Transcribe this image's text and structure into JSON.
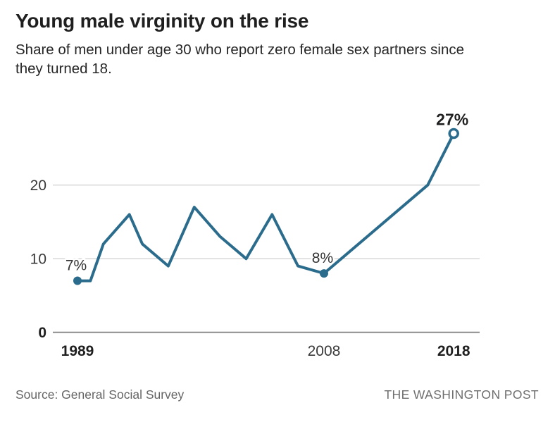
{
  "header": {
    "title": "Young male virginity on the rise",
    "subtitle_lines": [
      "Share of men under age 30 who report zero female sex partners since",
      "they turned 18."
    ]
  },
  "footer": {
    "source": "Source: General Social Survey",
    "credit": "THE WASHINGTON POST"
  },
  "colors": {
    "line": "#2b6c8d",
    "grid": "#d5d5d5",
    "zero_axis": "#8c8c8c",
    "tick_text": "#3a3a3a",
    "tick_text_bold": "#1f1f1f",
    "annotation_text": "#333333",
    "annotation_text_bold": "#1f1f1f",
    "background": "#ffffff"
  },
  "chart_data": {
    "type": "line",
    "x": [
      1989,
      1990,
      1991,
      1993,
      1994,
      1996,
      1998,
      2000,
      2002,
      2004,
      2006,
      2008,
      2016,
      2018
    ],
    "values": [
      7,
      7,
      12,
      16,
      12,
      9,
      17,
      13,
      10,
      16,
      9,
      8,
      20,
      27
    ],
    "title": "Young male virginity on the rise",
    "xlabel": "",
    "ylabel": "",
    "xlim": [
      1989,
      2018
    ],
    "ylim": [
      0,
      30
    ],
    "grid": true,
    "legend": false,
    "yticks": [
      {
        "value": 0,
        "label": "0",
        "bold": true
      },
      {
        "value": 10,
        "label": "10",
        "bold": false
      },
      {
        "value": 20,
        "label": "20",
        "bold": false
      }
    ],
    "xticks": [
      {
        "year": 1989,
        "label": "1989",
        "bold": true
      },
      {
        "year": 2008,
        "label": "2008",
        "bold": false
      },
      {
        "year": 2018,
        "label": "2018",
        "bold": true
      }
    ],
    "annotated_points": [
      {
        "year": 1989,
        "value": 7,
        "label": "7%",
        "marker": "filled",
        "bold": false
      },
      {
        "year": 2008,
        "value": 8,
        "label": "8%",
        "marker": "filled",
        "bold": false
      },
      {
        "year": 2018,
        "value": 27,
        "label": "27%",
        "marker": "open",
        "bold": true
      }
    ]
  }
}
